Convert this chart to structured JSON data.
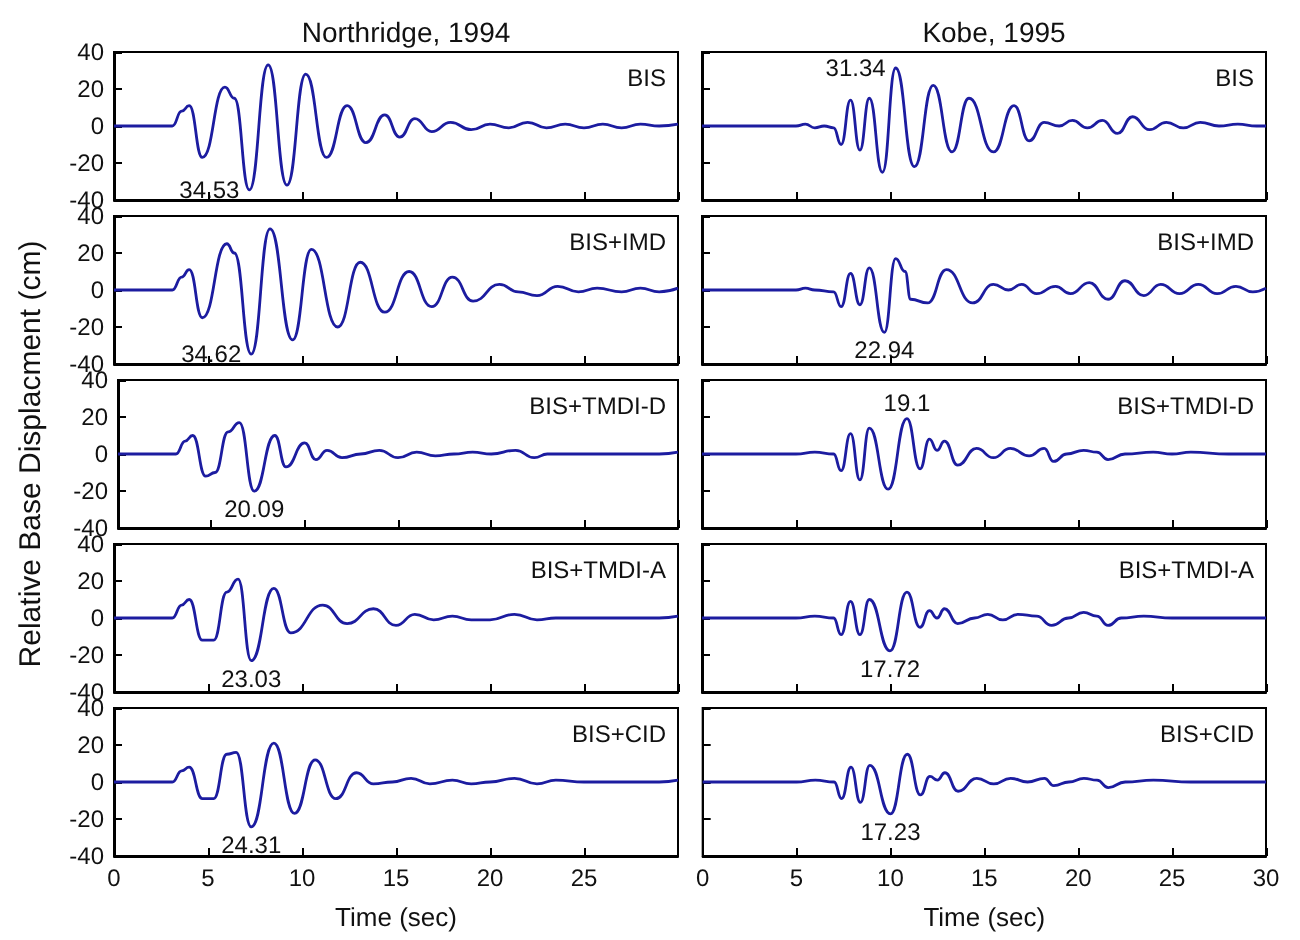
{
  "chart_data": [
    {
      "type": "line",
      "title": "Northridge, 1994",
      "color": "#1c1ca0",
      "marker": "none",
      "tick_labels": "y",
      "xlim": [
        0,
        30
      ],
      "ylim": [
        -40,
        40
      ],
      "xticks": [
        0,
        5,
        10,
        15,
        20,
        25,
        30
      ],
      "yticks": [
        -40,
        -20,
        0,
        20,
        40
      ],
      "annotations": [
        "BIS",
        {
          "text": "34.53",
          "x": 7.2,
          "y": -34.53
        }
      ],
      "x": [
        0,
        3.1,
        3.6,
        4.0,
        4.7,
        5.9,
        6.4,
        7.2,
        8.2,
        9.2,
        10.2,
        11.3,
        12.4,
        13.4,
        14.4,
        15.2,
        16.0,
        16.9,
        17.9,
        19,
        20,
        21,
        22,
        23,
        24,
        25,
        26,
        27,
        28,
        29,
        30
      ],
      "values": [
        0,
        0,
        8,
        11,
        -17,
        21,
        15,
        -34.53,
        33,
        -32,
        28,
        -17,
        11,
        -9,
        6,
        -6,
        4,
        -3,
        2,
        -2,
        1,
        -1,
        2,
        -1,
        1,
        -1,
        1,
        -1,
        1,
        0,
        1
      ]
    },
    {
      "type": "line",
      "title": "Kobe, 1995",
      "color": "#1c1ca0",
      "marker": "none",
      "tick_labels": false,
      "xlim": [
        0,
        30
      ],
      "ylim": [
        -40,
        40
      ],
      "xticks": [
        0,
        5,
        10,
        15,
        20,
        25,
        30
      ],
      "yticks": [
        -40,
        -20,
        0,
        20,
        40
      ],
      "annotations": [
        "BIS",
        {
          "text": "31.34",
          "x": 10.3,
          "y": 31.34
        }
      ],
      "x": [
        0,
        5,
        5.5,
        6,
        6.5,
        7,
        7.4,
        7.9,
        8.4,
        8.9,
        9.6,
        10.3,
        11.3,
        12.3,
        13.3,
        14.2,
        15.5,
        16.6,
        17.4,
        18.2,
        19,
        19.7,
        20.5,
        21.3,
        22.1,
        22.9,
        23.8,
        24.7,
        25.6,
        26.5,
        27.5,
        28.5,
        29.5,
        30
      ],
      "values": [
        0,
        0,
        1,
        -1,
        0,
        -1,
        -10,
        14,
        -13,
        15,
        -25,
        31.34,
        -22,
        22,
        -14,
        15,
        -14,
        11,
        -8,
        2,
        0,
        3,
        -1,
        3,
        -4,
        5,
        -2,
        2,
        -1,
        2,
        0,
        1,
        0,
        0
      ]
    },
    {
      "type": "line",
      "color": "#1c1ca0",
      "marker": "none",
      "tick_labels": "y",
      "xlim": [
        0,
        30
      ],
      "ylim": [
        -40,
        40
      ],
      "xticks": [
        0,
        5,
        10,
        15,
        20,
        25,
        30
      ],
      "yticks": [
        -40,
        -20,
        0,
        20,
        40
      ],
      "annotations": [
        "BIS+IMD",
        {
          "text": "34.62",
          "x": 7.3,
          "y": -34.62
        }
      ],
      "x": [
        0,
        3.1,
        3.6,
        4.0,
        4.7,
        6.0,
        6.4,
        7.3,
        8.3,
        9.5,
        10.5,
        11.9,
        13.1,
        14.4,
        15.7,
        16.9,
        18.0,
        19.1,
        20.5,
        21.5,
        22.5,
        23.6,
        24.7,
        25.7,
        27,
        28,
        29,
        30
      ],
      "values": [
        0,
        0,
        7,
        11,
        -15,
        25,
        20,
        -34.62,
        33,
        -27,
        22,
        -20,
        15,
        -12,
        10,
        -9,
        7,
        -6,
        3,
        -1,
        -3,
        2,
        -1,
        1,
        -1,
        1,
        -1,
        1
      ]
    },
    {
      "type": "line",
      "color": "#1c1ca0",
      "marker": "none",
      "tick_labels": false,
      "xlim": [
        0,
        30
      ],
      "ylim": [
        -40,
        40
      ],
      "xticks": [
        0,
        5,
        10,
        15,
        20,
        25,
        30
      ],
      "yticks": [
        -40,
        -20,
        0,
        20,
        40
      ],
      "annotations": [
        "BIS+IMD",
        {
          "text": "22.94",
          "x": 9.7,
          "y": -22.94
        }
      ],
      "x": [
        0,
        5,
        5.5,
        6,
        7,
        7.4,
        7.9,
        8.4,
        8.9,
        9.7,
        10.3,
        10.8,
        11.1,
        12.0,
        13.0,
        14.4,
        15.5,
        16.3,
        17,
        17.8,
        18.8,
        19.6,
        20.6,
        21.6,
        22.5,
        23.5,
        24.4,
        25.4,
        26.4,
        27.4,
        28.4,
        29.3,
        30
      ],
      "values": [
        0,
        0,
        1,
        0,
        -1,
        -9,
        9,
        -8,
        12,
        -22.94,
        17,
        10,
        -5,
        -7,
        11,
        -7,
        3,
        0,
        3,
        -2,
        2,
        -2,
        4,
        -5,
        5,
        -3,
        3,
        -2,
        3,
        -2,
        2,
        -1,
        1
      ]
    },
    {
      "type": "line",
      "ylabel": "Relative Base Displacment (cm)",
      "color": "#1c1ca0",
      "marker": "none",
      "tick_labels": "y",
      "xlim": [
        0,
        30
      ],
      "ylim": [
        -40,
        40
      ],
      "xticks": [
        0,
        5,
        10,
        15,
        20,
        25,
        30
      ],
      "yticks": [
        -40,
        -20,
        0,
        20,
        40
      ],
      "annotations": [
        "BIS+TMDI-D",
        {
          "text": "20.09",
          "x": 7.3,
          "y": -20.09
        }
      ],
      "x": [
        0,
        3.1,
        3.6,
        4.0,
        4.7,
        5.2,
        5.9,
        6.5,
        7.3,
        8.4,
        9.0,
        10.0,
        10.6,
        11.2,
        12,
        13,
        14,
        15,
        16,
        17,
        18,
        19,
        20,
        21.3,
        22.3,
        23,
        24,
        25,
        26.5,
        28,
        29,
        30
      ],
      "values": [
        0,
        0,
        7,
        10,
        -12,
        -10,
        12,
        17,
        -20.09,
        10,
        -7,
        6,
        -3,
        2,
        -2,
        0,
        2,
        -2,
        1,
        -1,
        0,
        1,
        0,
        2,
        -2,
        0,
        0,
        0,
        0,
        0,
        0,
        1
      ]
    },
    {
      "type": "line",
      "color": "#1c1ca0",
      "marker": "none",
      "tick_labels": false,
      "xlim": [
        0,
        30
      ],
      "ylim": [
        -40,
        40
      ],
      "xticks": [
        0,
        5,
        10,
        15,
        20,
        25,
        30
      ],
      "yticks": [
        -40,
        -20,
        0,
        20,
        40
      ],
      "annotations": [
        "BIS+TMDI-D",
        {
          "text": "19.1",
          "x": 10.9,
          "y": 19.1
        }
      ],
      "x": [
        0,
        5,
        6,
        7,
        7.4,
        7.9,
        8.4,
        8.9,
        9.9,
        10.9,
        11.6,
        12.1,
        12.5,
        12.9,
        13.6,
        14.6,
        15.5,
        16.4,
        17.4,
        18.2,
        18.7,
        19.4,
        20.3,
        21.0,
        21.6,
        22.5,
        24,
        25,
        26,
        28,
        30
      ],
      "values": [
        0,
        0,
        1,
        0,
        -9,
        11,
        -14,
        14,
        -19,
        19.1,
        -8,
        8,
        2,
        7,
        -6,
        3,
        -2,
        3,
        -1,
        3,
        -4,
        0,
        2,
        1,
        -3,
        0,
        1,
        0,
        1,
        0,
        0
      ]
    },
    {
      "type": "line",
      "color": "#1c1ca0",
      "marker": "none",
      "tick_labels": "y",
      "xlim": [
        0,
        30
      ],
      "ylim": [
        -40,
        40
      ],
      "xticks": [
        0,
        5,
        10,
        15,
        20,
        25,
        30
      ],
      "yticks": [
        -40,
        -20,
        0,
        20,
        40
      ],
      "annotations": [
        "BIS+TMDI-A",
        {
          "text": "23.03",
          "x": 7.3,
          "y": -23.03
        }
      ],
      "x": [
        0,
        3.1,
        3.6,
        4.0,
        4.7,
        5.3,
        6.0,
        6.6,
        7.3,
        8.5,
        9.4,
        11.1,
        12.4,
        13.8,
        15.0,
        16.0,
        17,
        18,
        19,
        20,
        21.3,
        22.5,
        23.5,
        25,
        27,
        29,
        30
      ],
      "values": [
        0,
        0,
        7,
        10,
        -12,
        -12,
        14,
        21,
        -23.03,
        16,
        -8,
        7,
        -3,
        5,
        -4,
        2,
        -1,
        1,
        -1,
        -1,
        2,
        -1,
        0,
        0,
        0,
        0,
        1
      ]
    },
    {
      "type": "line",
      "color": "#1c1ca0",
      "marker": "none",
      "tick_labels": false,
      "xlim": [
        0,
        30
      ],
      "ylim": [
        -40,
        40
      ],
      "xticks": [
        0,
        5,
        10,
        15,
        20,
        25,
        30
      ],
      "yticks": [
        -40,
        -20,
        0,
        20,
        40
      ],
      "annotations": [
        "BIS+TMDI-A",
        {
          "text": "17.72",
          "x": 10.0,
          "y": -17.72
        }
      ],
      "x": [
        0,
        5,
        6,
        7,
        7.4,
        7.9,
        8.4,
        8.9,
        10.0,
        10.9,
        11.6,
        12.1,
        12.5,
        12.9,
        13.6,
        14.5,
        15.2,
        16.0,
        16.8,
        17.8,
        18.6,
        19.5,
        20.3,
        21.0,
        21.6,
        22.3,
        23.5,
        25,
        26,
        28,
        30
      ],
      "values": [
        0,
        0,
        1,
        0,
        -9,
        9,
        -9,
        10,
        -17.72,
        14,
        -5,
        4,
        0,
        5,
        -3,
        0,
        2,
        -1,
        2,
        1,
        -4,
        0,
        3,
        1,
        -4,
        0,
        1,
        0,
        0,
        0,
        0
      ]
    },
    {
      "type": "line",
      "xlabel": "Time (sec)",
      "color": "#1c1ca0",
      "marker": "none",
      "xlim": [
        0,
        30
      ],
      "ylim": [
        -40,
        40
      ],
      "xticks": [
        0,
        5,
        10,
        15,
        20,
        25
      ],
      "yticks": [
        -40,
        -20,
        0,
        20,
        40
      ],
      "annotations": [
        "BIS+CID",
        {
          "text": "24.31",
          "x": 7.3,
          "y": -24.31
        }
      ],
      "x": [
        0,
        3.1,
        3.6,
        4.0,
        4.7,
        5.3,
        6.0,
        6.5,
        7.3,
        8.5,
        9.6,
        10.7,
        11.8,
        12.9,
        13.8,
        14.8,
        15.8,
        16.8,
        18,
        19,
        20,
        21.3,
        22.5,
        23.5,
        25,
        27,
        29,
        30
      ],
      "values": [
        0,
        0,
        6,
        8,
        -9,
        -9,
        15,
        16,
        -24.31,
        21,
        -17,
        12,
        -9,
        5,
        -1,
        0,
        2,
        -1,
        1,
        -1,
        0,
        2,
        -1,
        1,
        0,
        0,
        0,
        1
      ]
    },
    {
      "type": "line",
      "xlabel": "Time (sec)",
      "color": "#1c1ca0",
      "marker": "none",
      "tick_labels": "x",
      "xlim": [
        0,
        30
      ],
      "ylim": [
        -40,
        40
      ],
      "xticks": [
        0,
        5,
        10,
        15,
        20,
        25,
        30
      ],
      "yticks": [
        -40,
        -20,
        0,
        20,
        40
      ],
      "annotations": [
        "BIS+CID",
        {
          "text": "17.23",
          "x": 10.0,
          "y": -17.23
        }
      ],
      "x": [
        0,
        5,
        6,
        7,
        7.4,
        7.9,
        8.4,
        8.9,
        10.0,
        10.9,
        11.6,
        12.1,
        12.5,
        12.9,
        13.6,
        14.6,
        15.5,
        16.4,
        17.3,
        18.2,
        18.7,
        19.5,
        20.3,
        21.0,
        21.6,
        22.5,
        24,
        26,
        28,
        30
      ],
      "values": [
        0,
        0,
        1,
        0,
        -9,
        8,
        -11,
        9,
        -17.23,
        15,
        -7,
        3,
        1,
        5,
        -5,
        2,
        -1,
        2,
        0,
        2,
        -2,
        0,
        2,
        1,
        -3,
        0,
        1,
        0,
        0,
        0
      ]
    }
  ]
}
